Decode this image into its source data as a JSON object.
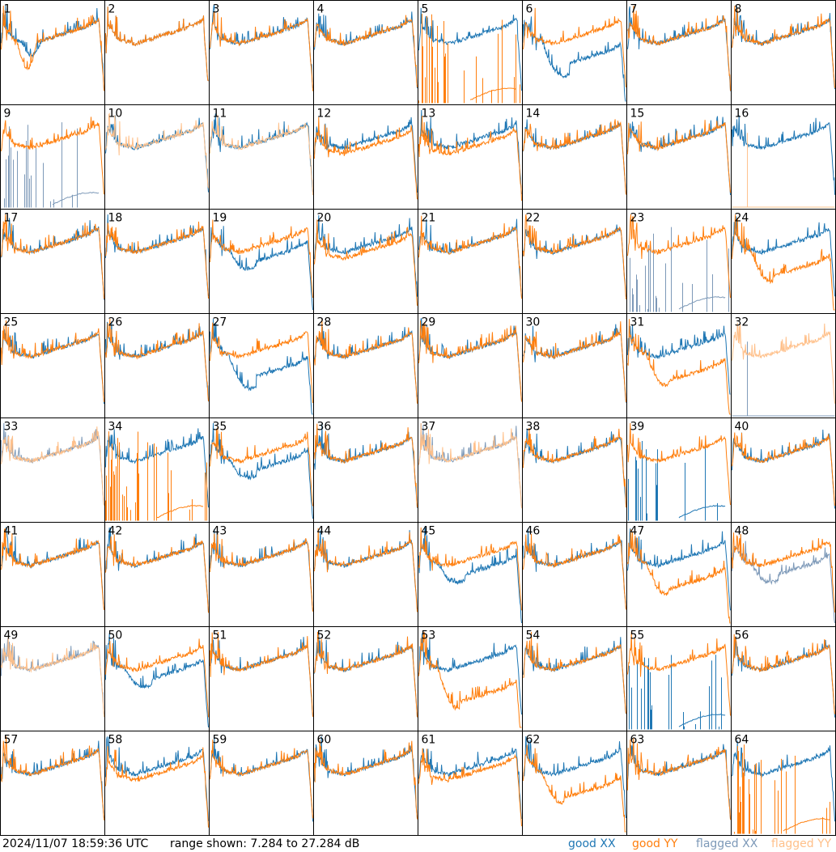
{
  "chart_data": {
    "type": "line",
    "grid": {
      "rows": 8,
      "cols": 8
    },
    "colors": {
      "good_xx": "#1f77b4",
      "good_yy": "#ff7f0e",
      "flagged_xx": "#7d99b8",
      "flagged_yy": "#ffc08a"
    },
    "panels": [
      {
        "label": "1",
        "shape": "dip",
        "xx": "good",
        "yy": "good"
      },
      {
        "label": "2",
        "shape": "normal",
        "xx": "good",
        "yy": "good"
      },
      {
        "label": "3",
        "shape": "normal",
        "xx": "good",
        "yy": "good"
      },
      {
        "label": "4",
        "shape": "normal",
        "xx": "good",
        "yy": "good"
      },
      {
        "label": "5",
        "shape": "xx_only_dip",
        "xx": "good",
        "yy": "spikes"
      },
      {
        "label": "6",
        "shape": "xx_deep_dip",
        "xx": "good",
        "yy": "good"
      },
      {
        "label": "7",
        "shape": "normal",
        "xx": "good",
        "yy": "good"
      },
      {
        "label": "8",
        "shape": "normal",
        "xx": "good",
        "yy": "good"
      },
      {
        "label": "9",
        "shape": "yy_only",
        "xx": "flagged_spikes",
        "yy": "good"
      },
      {
        "label": "10",
        "shape": "flagged_both",
        "xx": "good",
        "yy": "flagged"
      },
      {
        "label": "11",
        "shape": "flagged_both",
        "xx": "good",
        "yy": "flagged"
      },
      {
        "label": "12",
        "shape": "normal_sep",
        "xx": "good",
        "yy": "good"
      },
      {
        "label": "13",
        "shape": "normal_sep",
        "xx": "good",
        "yy": "good"
      },
      {
        "label": "14",
        "shape": "normal",
        "xx": "good",
        "yy": "good"
      },
      {
        "label": "15",
        "shape": "normal",
        "xx": "good",
        "yy": "good"
      },
      {
        "label": "16",
        "shape": "xx_only",
        "xx": "good",
        "yy": "flagged_spike"
      },
      {
        "label": "17",
        "shape": "normal",
        "xx": "good",
        "yy": "good"
      },
      {
        "label": "18",
        "shape": "normal",
        "xx": "good",
        "yy": "good"
      },
      {
        "label": "19",
        "shape": "xx_low",
        "xx": "good",
        "yy": "good"
      },
      {
        "label": "20",
        "shape": "normal_sep",
        "xx": "good",
        "yy": "good"
      },
      {
        "label": "21",
        "shape": "normal",
        "xx": "good",
        "yy": "good"
      },
      {
        "label": "22",
        "shape": "normal",
        "xx": "good",
        "yy": "good"
      },
      {
        "label": "23",
        "shape": "yy_only",
        "xx": "flagged_spikes",
        "yy": "good"
      },
      {
        "label": "24",
        "shape": "yy_low",
        "xx": "good",
        "yy": "good"
      },
      {
        "label": "25",
        "shape": "normal",
        "xx": "good",
        "yy": "good"
      },
      {
        "label": "26",
        "shape": "normal",
        "xx": "good",
        "yy": "good"
      },
      {
        "label": "27",
        "shape": "xx_deep_dip",
        "xx": "good",
        "yy": "good"
      },
      {
        "label": "28",
        "shape": "normal",
        "xx": "good",
        "yy": "good"
      },
      {
        "label": "29",
        "shape": "normal",
        "xx": "good",
        "yy": "good"
      },
      {
        "label": "30",
        "shape": "normal",
        "xx": "good",
        "yy": "good"
      },
      {
        "label": "31",
        "shape": "yy_low",
        "xx": "good",
        "yy": "good"
      },
      {
        "label": "32",
        "shape": "flagged_yy_only",
        "xx": "flagged_spike",
        "yy": "flagged"
      },
      {
        "label": "33",
        "shape": "flagged_both",
        "xx": "flagged",
        "yy": "flagged"
      },
      {
        "label": "34",
        "shape": "xx_only",
        "xx": "good",
        "yy": "spikes"
      },
      {
        "label": "35",
        "shape": "xx_low",
        "xx": "good",
        "yy": "good"
      },
      {
        "label": "36",
        "shape": "normal",
        "xx": "good",
        "yy": "good"
      },
      {
        "label": "37",
        "shape": "flagged_both",
        "xx": "flagged",
        "yy": "flagged"
      },
      {
        "label": "38",
        "shape": "normal",
        "xx": "good",
        "yy": "good"
      },
      {
        "label": "39",
        "shape": "yy_only",
        "xx": "spikes",
        "yy": "good"
      },
      {
        "label": "40",
        "shape": "normal",
        "xx": "good",
        "yy": "good"
      },
      {
        "label": "41",
        "shape": "normal",
        "xx": "good",
        "yy": "good"
      },
      {
        "label": "42",
        "shape": "normal",
        "xx": "good",
        "yy": "good"
      },
      {
        "label": "43",
        "shape": "normal",
        "xx": "good",
        "yy": "good"
      },
      {
        "label": "44",
        "shape": "normal",
        "xx": "good",
        "yy": "good"
      },
      {
        "label": "45",
        "shape": "xx_low",
        "xx": "good",
        "yy": "good"
      },
      {
        "label": "46",
        "shape": "normal",
        "xx": "good",
        "yy": "good"
      },
      {
        "label": "47",
        "shape": "yy_low",
        "xx": "good",
        "yy": "good"
      },
      {
        "label": "48",
        "shape": "xx_low",
        "xx": "flagged",
        "yy": "good"
      },
      {
        "label": "49",
        "shape": "flagged_both",
        "xx": "flagged",
        "yy": "flagged"
      },
      {
        "label": "50",
        "shape": "xx_low",
        "xx": "good",
        "yy": "good"
      },
      {
        "label": "51",
        "shape": "normal",
        "xx": "good",
        "yy": "good"
      },
      {
        "label": "52",
        "shape": "normal",
        "xx": "good",
        "yy": "good"
      },
      {
        "label": "53",
        "shape": "yy_deep",
        "xx": "good",
        "yy": "good"
      },
      {
        "label": "54",
        "shape": "normal",
        "xx": "good",
        "yy": "good"
      },
      {
        "label": "55",
        "shape": "yy_only",
        "xx": "spikes",
        "yy": "good"
      },
      {
        "label": "56",
        "shape": "normal",
        "xx": "good",
        "yy": "good"
      },
      {
        "label": "57",
        "shape": "normal",
        "xx": "good",
        "yy": "good"
      },
      {
        "label": "58",
        "shape": "normal_sep",
        "xx": "good",
        "yy": "good"
      },
      {
        "label": "59",
        "shape": "normal",
        "xx": "good",
        "yy": "good"
      },
      {
        "label": "60",
        "shape": "normal",
        "xx": "good",
        "yy": "good"
      },
      {
        "label": "61",
        "shape": "normal_sep",
        "xx": "good",
        "yy": "good"
      },
      {
        "label": "62",
        "shape": "yy_low",
        "xx": "good",
        "yy": "good"
      },
      {
        "label": "63",
        "shape": "normal",
        "xx": "good",
        "yy": "good"
      },
      {
        "label": "64",
        "shape": "xx_only",
        "xx": "good",
        "yy": "spikes"
      }
    ]
  },
  "footer": {
    "timestamp": "2024/11/07 18:59:36 UTC",
    "range": "range shown: 7.284 to 27.284 dB",
    "legend": {
      "good": "good",
      "flagged": "flagged",
      "xx": "XX",
      "yy": "YY"
    }
  }
}
